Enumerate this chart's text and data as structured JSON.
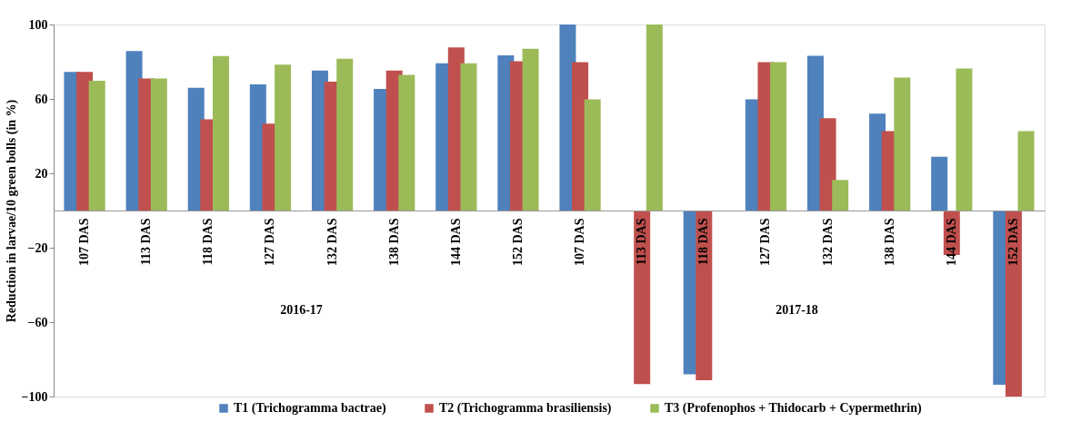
{
  "chart_data": {
    "type": "bar",
    "ylabel": "Reduction in larvae/10 green bolls (in %)",
    "categories": [
      "107 DAS",
      "113 DAS",
      "118 DAS",
      "127 DAS",
      "132 DAS",
      "138 DAS",
      "144 DAS",
      "152 DAS",
      "107 DAS",
      "113 DAS",
      "118 DAS",
      "127 DAS",
      "132 DAS",
      "138 DAS",
      "144 DAS",
      "152 DAS"
    ],
    "series": [
      {
        "name": "T1 (Trichogramma bactrae)",
        "color": "#4f81bd",
        "values": [
          74.5,
          85.7,
          66,
          67.8,
          75.3,
          65.4,
          79.2,
          83.4,
          100,
          0,
          -88,
          59.8,
          83.2,
          52.1,
          28.9,
          -93.6
        ]
      },
      {
        "name": "T2 (Trichogramma brasiliensis)",
        "color": "#c0504d",
        "values": [
          74.5,
          71,
          49,
          46.7,
          69.3,
          75.3,
          87.7,
          80.3,
          79.7,
          -93.3,
          -91.2,
          79.7,
          49.6,
          42.7,
          -23.9,
          -100
        ]
      },
      {
        "name": "T3 (Profenophos + Thidocarb + Cypermethrin)",
        "color": "#9bbb59",
        "values": [
          69.7,
          71,
          83,
          78.4,
          81.6,
          72.9,
          79.2,
          87,
          59.8,
          100,
          0,
          79.7,
          16.4,
          71.5,
          76.3,
          42.7
        ]
      }
    ],
    "ylim": [
      -100,
      100
    ],
    "yticks": [
      -100,
      -60,
      -20,
      20,
      60,
      100
    ],
    "annotations": [
      "2016-17",
      "2017-18"
    ],
    "legend": "bottom",
    "grid": false
  }
}
